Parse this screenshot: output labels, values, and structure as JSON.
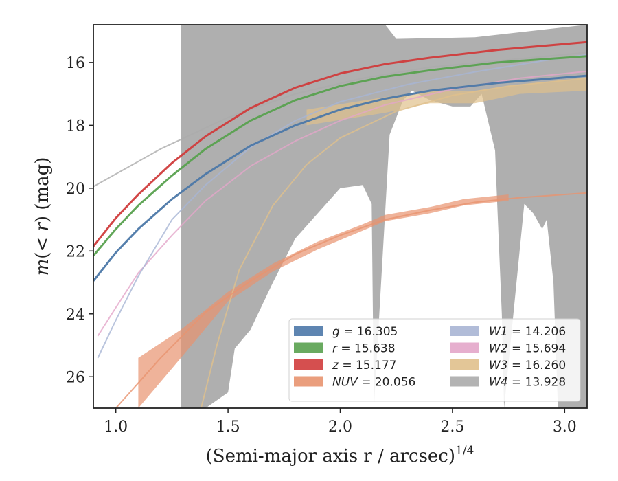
{
  "chart_data": {
    "type": "line",
    "xlabel": "(Semi-major axis r / arcsec)",
    "xlabel_sup": "1/4",
    "ylabel_parts": [
      "m",
      "(< ",
      "r",
      ") (mag)"
    ],
    "xlim": [
      0.9,
      3.1
    ],
    "ylim": [
      27.0,
      14.8
    ],
    "y_inverted": true,
    "xticks": [
      1.0,
      1.5,
      2.0,
      2.5,
      3.0
    ],
    "xtick_labels": [
      "1.0",
      "1.5",
      "2.0",
      "2.5",
      "3.0"
    ],
    "yticks": [
      16,
      18,
      20,
      22,
      24,
      26
    ],
    "ytick_labels": [
      "16",
      "18",
      "20",
      "22",
      "24",
      "26"
    ],
    "grid": false,
    "legend": {
      "placement": "lower-right",
      "columns": 2,
      "entries": [
        {
          "var": "g",
          "value": "16.305"
        },
        {
          "var": "r",
          "value": "15.638"
        },
        {
          "var": "z",
          "value": "15.177"
        },
        {
          "var": "NUV",
          "value": "20.056"
        },
        {
          "var": "W1",
          "value": "14.206"
        },
        {
          "var": "W2",
          "value": "15.694"
        },
        {
          "var": "W3",
          "value": "16.260"
        },
        {
          "var": "W4",
          "value": "13.928"
        }
      ]
    },
    "series": [
      {
        "key": "W4",
        "color": "#ababab",
        "band_upper": [
          [
            1.29,
            14.8
          ],
          [
            2.2,
            14.8
          ],
          [
            2.25,
            15.25
          ],
          [
            2.6,
            15.2
          ],
          [
            3.1,
            14.8
          ]
        ],
        "band_lower": [
          [
            1.29,
            27.0
          ],
          [
            1.4,
            27.0
          ],
          [
            1.5,
            26.5
          ],
          [
            1.53,
            25.1
          ],
          [
            1.6,
            24.5
          ],
          [
            1.7,
            23.0
          ],
          [
            1.8,
            21.6
          ],
          [
            1.9,
            20.8
          ],
          [
            2.0,
            20.0
          ],
          [
            2.1,
            19.9
          ],
          [
            2.14,
            20.5
          ],
          [
            2.15,
            27.0
          ],
          [
            2.22,
            18.3
          ],
          [
            2.28,
            17.2
          ],
          [
            2.32,
            16.9
          ],
          [
            2.4,
            17.2
          ],
          [
            2.5,
            17.4
          ],
          [
            2.58,
            17.4
          ],
          [
            2.63,
            17.0
          ],
          [
            2.69,
            18.8
          ],
          [
            2.7,
            20.6
          ],
          [
            2.72,
            24.0
          ],
          [
            2.73,
            27.0
          ],
          [
            2.82,
            20.5
          ],
          [
            2.86,
            20.8
          ],
          [
            2.9,
            21.3
          ],
          [
            2.92,
            21.0
          ],
          [
            2.95,
            23.0
          ],
          [
            2.97,
            27.0
          ],
          [
            3.1,
            27.0
          ]
        ],
        "curve": [
          [
            0.9,
            19.95
          ],
          [
            1.0,
            19.55
          ],
          [
            1.2,
            18.75
          ],
          [
            1.5,
            17.75
          ],
          [
            1.8,
            17.0
          ],
          [
            2.1,
            16.5
          ],
          [
            2.4,
            16.15
          ],
          [
            2.7,
            15.95
          ],
          [
            3.1,
            15.68
          ]
        ]
      },
      {
        "key": "W3",
        "color": "#e0c08c",
        "band_upper": [
          [
            1.85,
            17.5
          ],
          [
            2.2,
            17.1
          ],
          [
            2.4,
            16.9
          ],
          [
            2.6,
            16.9
          ],
          [
            2.8,
            16.7
          ],
          [
            3.1,
            16.5
          ]
        ],
        "band_lower": [
          [
            1.85,
            18.0
          ],
          [
            2.2,
            17.6
          ],
          [
            2.4,
            17.3
          ],
          [
            2.6,
            17.3
          ],
          [
            2.8,
            17.0
          ],
          [
            3.1,
            16.9
          ]
        ],
        "curve": [
          [
            1.38,
            27.0
          ],
          [
            1.45,
            25.0
          ],
          [
            1.55,
            22.6
          ],
          [
            1.7,
            20.55
          ],
          [
            1.85,
            19.25
          ],
          [
            2.0,
            18.4
          ],
          [
            2.25,
            17.55
          ],
          [
            2.5,
            17.05
          ],
          [
            2.75,
            16.75
          ],
          [
            3.1,
            16.5
          ]
        ]
      },
      {
        "key": "W2",
        "color": "#e3a6c9",
        "curve": [
          [
            0.92,
            24.7
          ],
          [
            1.0,
            23.8
          ],
          [
            1.1,
            22.7
          ],
          [
            1.25,
            21.5
          ],
          [
            1.4,
            20.4
          ],
          [
            1.6,
            19.3
          ],
          [
            1.8,
            18.5
          ],
          [
            2.0,
            17.85
          ],
          [
            2.2,
            17.35
          ],
          [
            2.5,
            16.85
          ],
          [
            2.8,
            16.5
          ],
          [
            3.1,
            16.28
          ]
        ]
      },
      {
        "key": "W1",
        "color": "#a8b5d4",
        "curve": [
          [
            0.92,
            25.4
          ],
          [
            1.0,
            24.2
          ],
          [
            1.1,
            22.8
          ],
          [
            1.25,
            21.0
          ],
          [
            1.4,
            19.9
          ],
          [
            1.6,
            18.7
          ],
          [
            1.8,
            17.85
          ],
          [
            2.0,
            17.25
          ],
          [
            2.3,
            16.7
          ],
          [
            2.6,
            16.3
          ],
          [
            2.9,
            15.95
          ],
          [
            3.1,
            15.75
          ]
        ]
      },
      {
        "key": "NUV",
        "color": "#e8936f",
        "band_upper": [
          [
            1.1,
            25.4
          ],
          [
            1.29,
            24.5
          ],
          [
            1.5,
            23.3
          ],
          [
            1.7,
            22.4
          ],
          [
            1.9,
            21.7
          ],
          [
            2.1,
            21.15
          ],
          [
            2.2,
            20.85
          ],
          [
            2.4,
            20.6
          ],
          [
            2.55,
            20.35
          ],
          [
            2.75,
            20.2
          ]
        ],
        "band_lower": [
          [
            1.1,
            27.0
          ],
          [
            1.29,
            25.4
          ],
          [
            1.5,
            23.6
          ],
          [
            1.7,
            22.65
          ],
          [
            1.9,
            21.95
          ],
          [
            2.1,
            21.35
          ],
          [
            2.2,
            21.05
          ],
          [
            2.4,
            20.8
          ],
          [
            2.55,
            20.55
          ],
          [
            2.75,
            20.4
          ]
        ],
        "curve": [
          [
            1.0,
            27.0
          ],
          [
            1.2,
            25.4
          ],
          [
            1.4,
            23.95
          ],
          [
            1.6,
            22.95
          ],
          [
            1.8,
            22.1
          ],
          [
            2.0,
            21.5
          ],
          [
            2.2,
            21.0
          ],
          [
            2.4,
            20.7
          ],
          [
            2.6,
            20.45
          ],
          [
            2.8,
            20.3
          ],
          [
            3.1,
            20.15
          ]
        ]
      },
      {
        "key": "g",
        "color": "#4c78a8",
        "curve": [
          [
            0.9,
            22.95
          ],
          [
            1.0,
            22.05
          ],
          [
            1.1,
            21.3
          ],
          [
            1.25,
            20.35
          ],
          [
            1.4,
            19.55
          ],
          [
            1.6,
            18.65
          ],
          [
            1.8,
            18.0
          ],
          [
            2.0,
            17.5
          ],
          [
            2.2,
            17.15
          ],
          [
            2.4,
            16.9
          ],
          [
            2.7,
            16.65
          ],
          [
            3.1,
            16.42
          ]
        ]
      },
      {
        "key": "r",
        "color": "#59a14f",
        "curve": [
          [
            0.9,
            22.15
          ],
          [
            1.0,
            21.3
          ],
          [
            1.1,
            20.55
          ],
          [
            1.25,
            19.6
          ],
          [
            1.4,
            18.75
          ],
          [
            1.6,
            17.85
          ],
          [
            1.8,
            17.2
          ],
          [
            2.0,
            16.75
          ],
          [
            2.2,
            16.45
          ],
          [
            2.4,
            16.25
          ],
          [
            2.7,
            16.0
          ],
          [
            3.1,
            15.8
          ]
        ]
      },
      {
        "key": "z",
        "color": "#d03c3c",
        "curve": [
          [
            0.9,
            21.85
          ],
          [
            1.0,
            20.95
          ],
          [
            1.1,
            20.2
          ],
          [
            1.25,
            19.2
          ],
          [
            1.4,
            18.35
          ],
          [
            1.6,
            17.45
          ],
          [
            1.8,
            16.8
          ],
          [
            2.0,
            16.35
          ],
          [
            2.2,
            16.05
          ],
          [
            2.4,
            15.85
          ],
          [
            2.7,
            15.6
          ],
          [
            3.1,
            15.35
          ]
        ]
      }
    ]
  }
}
